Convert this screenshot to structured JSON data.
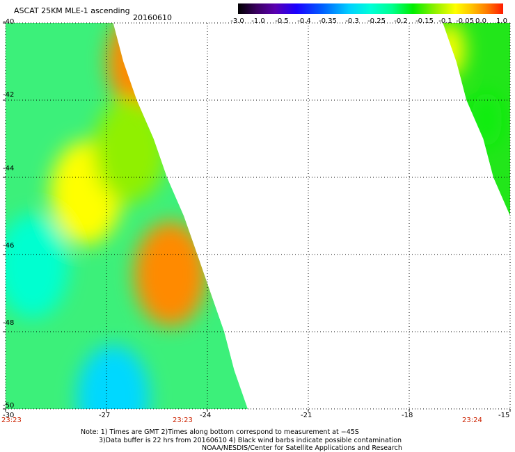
{
  "header": {
    "title": "ASCAT 25KM MLE-1 ascending",
    "date": "20160610"
  },
  "colorbar": {
    "labels": [
      "-3.0",
      "-1.0",
      "-0.5",
      "-0.4",
      "-0.35",
      "-0.3",
      "-0.25",
      "-0.2",
      "-0.15",
      "-0.1",
      "-0.05",
      "0.0",
      "1.0"
    ]
  },
  "axes": {
    "y_ticks": [
      "-40",
      "-42",
      "-44",
      "-46",
      "-48",
      "-50"
    ],
    "x_ticks": [
      "-30",
      "-27",
      "-24",
      "-21",
      "-18",
      "-15"
    ],
    "time_labels": [
      "23:23",
      "23:23",
      "23:24"
    ]
  },
  "notes": [
    "Note: 1) Times are GMT 2)Times along bottom correspond to measurement at −45S",
    "3)Data buffer is 22 hrs from 20160610 4) Black wind barbs indicate possible contamination",
    "NOAA/NESDIS/Center for Satellite Applications and Research"
  ],
  "map": {
    "lon_range": [
      -30,
      -15
    ],
    "lat_range": [
      -50,
      -40
    ],
    "grid": true,
    "swaths": [
      {
        "name": "west",
        "edge_lon_by_lat": [
          [
            -40,
            -26.8
          ],
          [
            -41,
            -26.5
          ],
          [
            -42,
            -26.1
          ],
          [
            -43,
            -25.6
          ],
          [
            -44,
            -25.2
          ],
          [
            -45,
            -24.7
          ],
          [
            -46,
            -24.3
          ],
          [
            -47,
            -23.9
          ],
          [
            -48,
            -23.5
          ],
          [
            -49,
            -23.2
          ],
          [
            -50,
            -22.8
          ]
        ],
        "mle_features": [
          {
            "lon": -25.9,
            "lat": -41.0,
            "value": 0.0
          },
          {
            "lon": -25.1,
            "lat": -46.5,
            "value": 0.0
          },
          {
            "lon": -27.6,
            "lat": -44.4,
            "value": -0.05
          },
          {
            "lon": -26.3,
            "lat": -43.3,
            "value": -0.1
          },
          {
            "lon": -29.2,
            "lat": -46.3,
            "value": -0.25
          },
          {
            "lon": -26.8,
            "lat": -49.7,
            "value": -0.3
          }
        ]
      },
      {
        "name": "east",
        "edge_lon_by_lat": [
          [
            -40,
            -17.0
          ],
          [
            -41,
            -16.6
          ],
          [
            -42,
            -16.3
          ],
          [
            -43,
            -15.8
          ],
          [
            -44,
            -15.5
          ],
          [
            -45,
            -15.0
          ]
        ],
        "mle_features": [
          {
            "lon": -16.8,
            "lat": -40.7,
            "value": -0.05
          },
          {
            "lon": -15.7,
            "lat": -42.5,
            "value": -0.15
          }
        ]
      }
    ]
  }
}
